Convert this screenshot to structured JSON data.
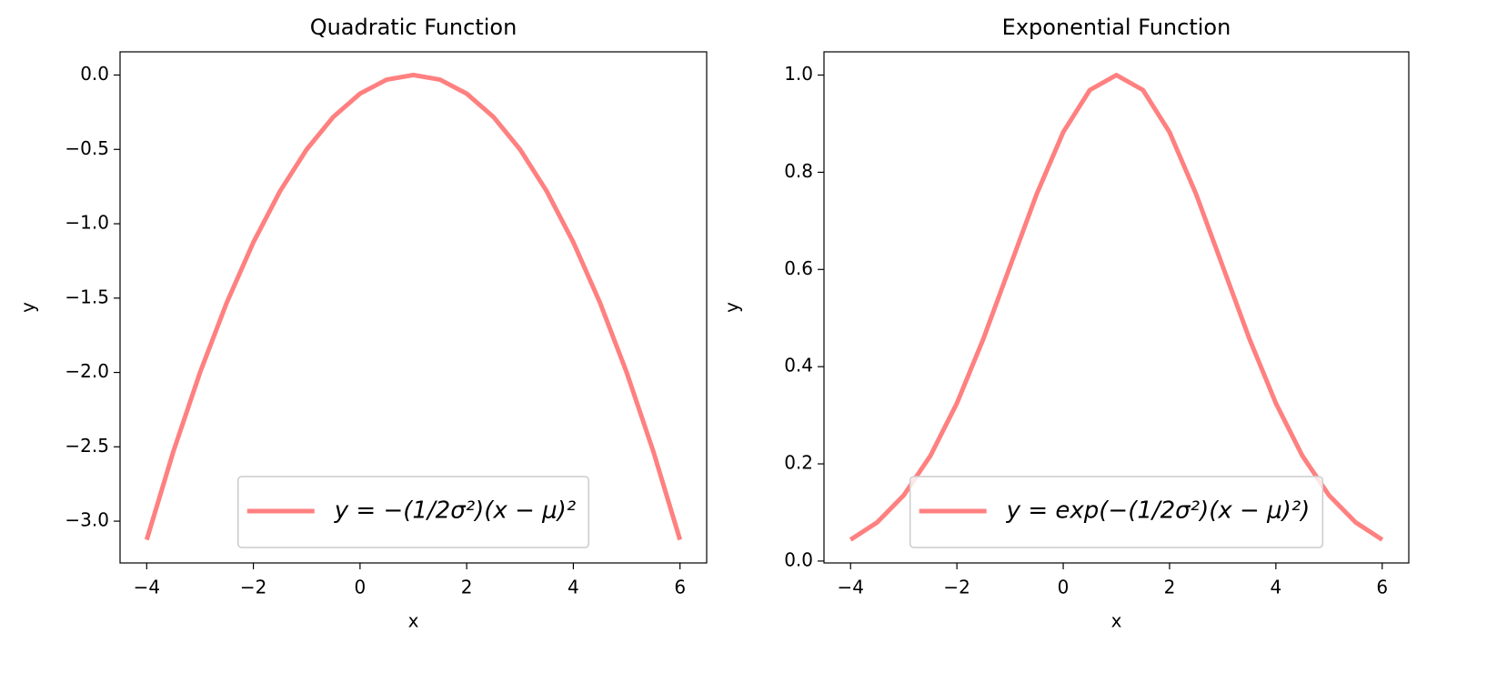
{
  "chart_data": [
    {
      "type": "line",
      "title": "Quadratic Function",
      "x_label": "x",
      "y_label": "y",
      "x": [
        -4,
        -3.5,
        -3,
        -2.5,
        -2,
        -1.5,
        -1,
        -0.5,
        0,
        0.5,
        1,
        1.5,
        2,
        2.5,
        3,
        3.5,
        4,
        4.5,
        5,
        5.5,
        6
      ],
      "series": [
        {
          "name": "y = −(1/2σ²)(x − μ)²",
          "color": "#ff8080",
          "values": [
            -3.125,
            -2.531,
            -2,
            -1.531,
            -1.125,
            -0.781,
            -0.5,
            -0.281,
            -0.125,
            -0.031,
            0,
            -0.031,
            -0.125,
            -0.281,
            -0.5,
            -0.781,
            -1.125,
            -1.531,
            -2,
            -2.531,
            -3.125
          ]
        }
      ],
      "xlim": [
        -4.5,
        6.5
      ],
      "ylim": [
        -3.281,
        0.156
      ],
      "xticks": [
        {
          "value": -4,
          "label": "−4"
        },
        {
          "value": -2,
          "label": "−2"
        },
        0,
        2,
        4,
        6
      ],
      "yticks": [
        {
          "value": 0,
          "label": "0.0"
        },
        {
          "value": -0.5,
          "label": "−0.5"
        },
        {
          "value": -1,
          "label": "−1.0"
        },
        {
          "value": -1.5,
          "label": "−1.5"
        },
        {
          "value": -2,
          "label": "−2.0"
        },
        {
          "value": -2.5,
          "label": "−2.5"
        },
        {
          "value": -3,
          "label": "−3.0"
        }
      ],
      "grid": false,
      "legend": "lower center"
    },
    {
      "type": "line",
      "title": "Exponential Function",
      "x_label": "x",
      "y_label": "y",
      "x": [
        -4,
        -3.5,
        -3,
        -2.5,
        -2,
        -1.5,
        -1,
        -0.5,
        0,
        0.5,
        1,
        1.5,
        2,
        2.5,
        3,
        3.5,
        4,
        4.5,
        5,
        5.5,
        6
      ],
      "series": [
        {
          "name": "y = exp(−(1/2σ²)(x − μ)²)",
          "color": "#ff8080",
          "values": [
            0.0439,
            0.0796,
            0.1353,
            0.2163,
            0.3247,
            0.4578,
            0.6065,
            0.7548,
            0.8825,
            0.9692,
            1,
            0.9692,
            0.8825,
            0.7548,
            0.6065,
            0.4578,
            0.3247,
            0.2163,
            0.1353,
            0.0796,
            0.0439
          ]
        }
      ],
      "xlim": [
        -4.5,
        6.5
      ],
      "ylim": [
        -0.0039,
        1.0478
      ],
      "xticks": [
        {
          "value": -4,
          "label": "−4"
        },
        {
          "value": -2,
          "label": "−2"
        },
        0,
        2,
        4,
        6
      ],
      "yticks": [
        {
          "value": 0,
          "label": "0.0"
        },
        {
          "value": 0.2,
          "label": "0.2"
        },
        {
          "value": 0.4,
          "label": "0.4"
        },
        {
          "value": 0.6,
          "label": "0.6"
        },
        {
          "value": 0.8,
          "label": "0.8"
        },
        {
          "value": 1,
          "label": "1.0"
        }
      ],
      "grid": false,
      "legend": "lower center"
    }
  ]
}
